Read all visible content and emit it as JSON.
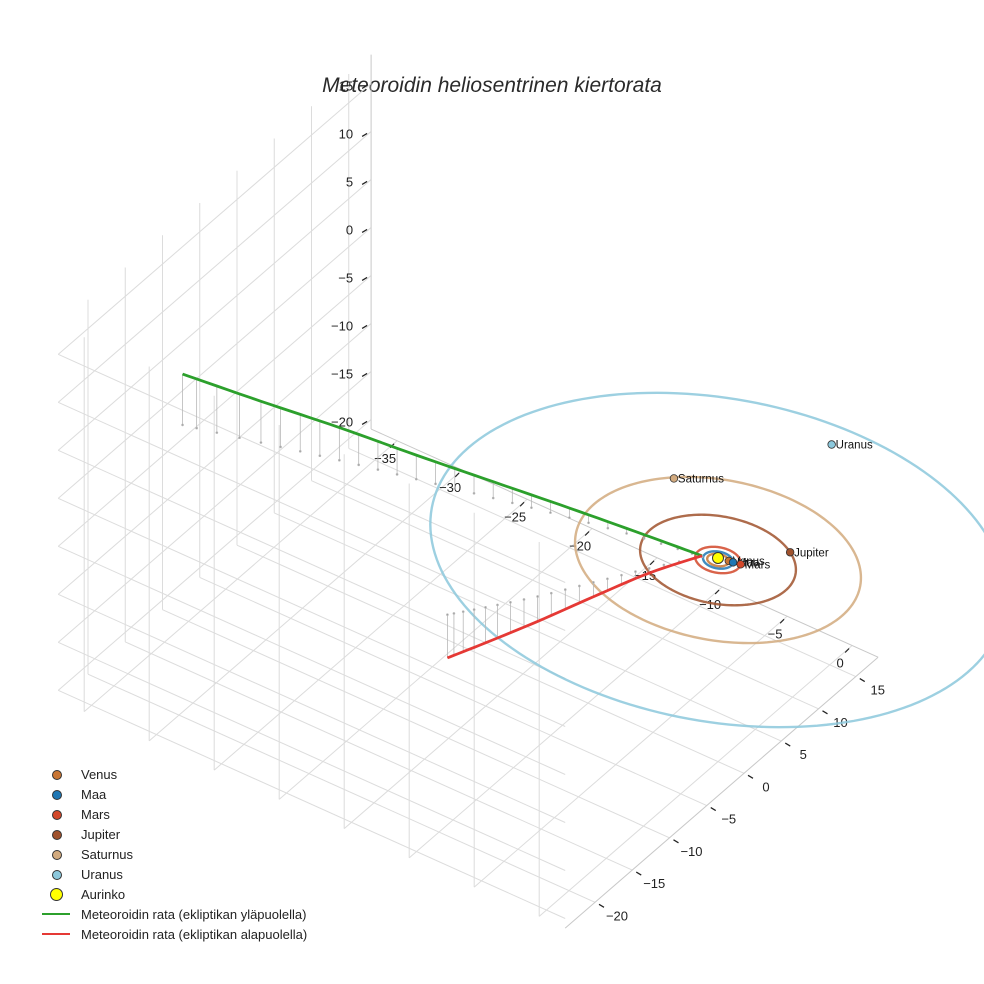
{
  "chart_data": {
    "type": "line3d",
    "title": "Meteoroidin heliosentrinen kiertorata",
    "axes": {
      "x": {
        "ticks": [
          -35,
          -30,
          -25,
          -20,
          -15,
          -10,
          -5,
          0
        ],
        "label": ""
      },
      "y": {
        "ticks": [
          -20,
          -15,
          -10,
          -5,
          0,
          5,
          10,
          15
        ],
        "label": ""
      },
      "z": {
        "ticks": [
          15,
          10,
          5,
          0,
          -5,
          -10,
          -15,
          -20
        ],
        "label": ""
      }
    },
    "planets": [
      {
        "name": "Venus",
        "label": "Venus",
        "color": "#c87533",
        "orbit_radius_au": 0.72,
        "position": [
          0.6,
          0.4,
          0
        ]
      },
      {
        "name": "Maa",
        "label": "Maa",
        "color": "#1f77b4",
        "orbit_radius_au": 1.0,
        "position": [
          0.9,
          0.45,
          0
        ]
      },
      {
        "name": "Mars",
        "label": "Mars",
        "color": "#d2482a",
        "orbit_radius_au": 1.52,
        "position": [
          1.4,
          0.6,
          0
        ]
      },
      {
        "name": "Jupiter",
        "label": "Jupiter",
        "color": "#a0522d",
        "orbit_radius_au": 5.2,
        "position": [
          3.2,
          4.1,
          0
        ]
      },
      {
        "name": "Saturnus",
        "label": "Saturnus",
        "color": "#d2aa7e",
        "orbit_radius_au": 9.54,
        "position": [
          -7.0,
          6.3,
          0
        ]
      },
      {
        "name": "Uranus",
        "label": "Uranus",
        "color": "#8cc8dc",
        "orbit_radius_au": 19.2,
        "position": [
          -1.0,
          17.0,
          0
        ]
      }
    ],
    "sun": {
      "name": "Aurinko",
      "color": "#ffff00",
      "position": [
        0,
        0,
        0
      ]
    },
    "series": [
      {
        "name": "Meteoroidin rata (ekliptikan yläpuolella)",
        "color": "#2ca02c",
        "points": [
          [
            -1.0,
            -0.4,
            0.1
          ],
          [
            -5,
            -1.2,
            0.4
          ],
          [
            -10,
            -2.5,
            1.0
          ],
          [
            -15,
            -4.0,
            1.7
          ],
          [
            -20,
            -5.6,
            2.5
          ],
          [
            -25,
            -7.2,
            3.4
          ],
          [
            -30,
            -9.0,
            4.3
          ],
          [
            -35,
            -10.8,
            5.3
          ]
        ]
      },
      {
        "name": "Meteoroidin rata (ekliptikan alapuolella)",
        "color": "#e53935",
        "points": [
          [
            -1.0,
            -0.4,
            0.1
          ],
          [
            -3,
            -4.0,
            -0.5
          ],
          [
            -5,
            -8.0,
            -1.5
          ],
          [
            -7,
            -12.0,
            -2.6
          ],
          [
            -9,
            -15.5,
            -3.7
          ],
          [
            -10.5,
            -18.0,
            -4.5
          ]
        ]
      }
    ],
    "legend": [
      {
        "label": "Venus",
        "kind": "marker",
        "color": "#c87533"
      },
      {
        "label": "Maa",
        "kind": "marker",
        "color": "#1f77b4"
      },
      {
        "label": "Mars",
        "kind": "marker",
        "color": "#d2482a"
      },
      {
        "label": "Jupiter",
        "kind": "marker",
        "color": "#a0522d"
      },
      {
        "label": "Saturnus",
        "kind": "marker",
        "color": "#d2aa7e"
      },
      {
        "label": "Uranus",
        "kind": "marker",
        "color": "#8cc8dc"
      },
      {
        "label": "Aurinko",
        "kind": "sun",
        "color": "#ffff00"
      },
      {
        "label": "Meteoroidin rata (ekliptikan yläpuolella)",
        "kind": "line",
        "color": "#2ca02c"
      },
      {
        "label": "Meteoroidin rata (ekliptikan alapuolella)",
        "kind": "line",
        "color": "#e53935"
      }
    ],
    "legend_position": "bottom-left",
    "grid": true
  }
}
